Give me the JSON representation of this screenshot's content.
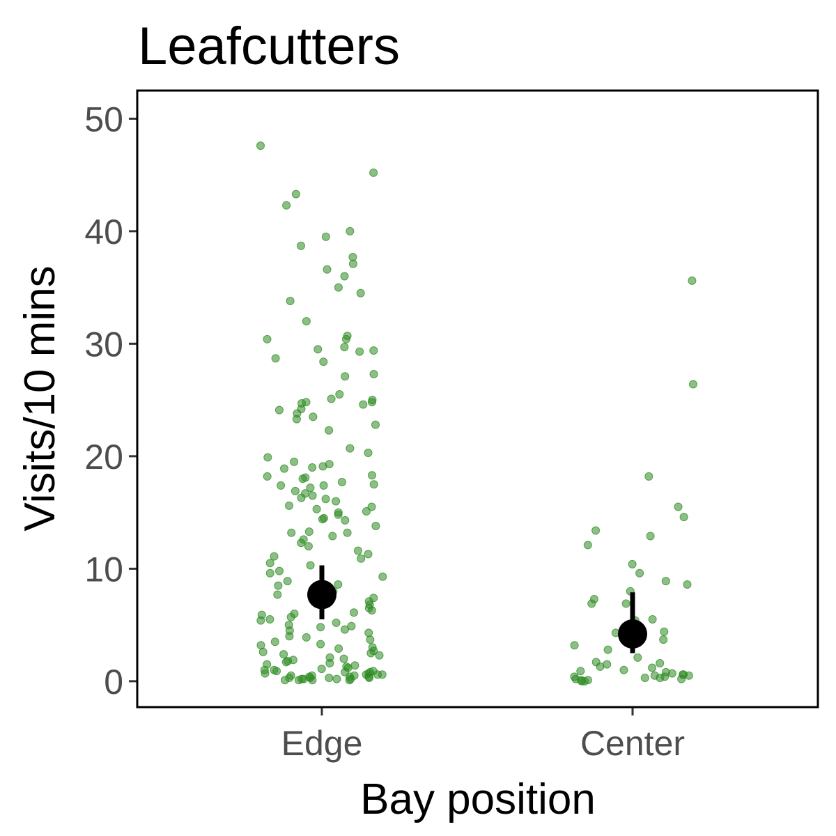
{
  "chart_data": {
    "type": "scatter",
    "title": "Leafcutters",
    "xlabel": "Bay position",
    "ylabel": "Visits/10 mins",
    "categories": [
      "Edge",
      "Center"
    ],
    "ylim": [
      -2.3,
      52.5
    ],
    "yticks": [
      0,
      10,
      20,
      30,
      40,
      50
    ],
    "grid": false,
    "legend": "none",
    "colors": {
      "points": "#2e8b22",
      "summary": "#000000"
    },
    "summary": [
      {
        "category": "Edge",
        "mean": 7.7,
        "lower": 5.5,
        "upper": 10.3
      },
      {
        "category": "Center",
        "mean": 4.2,
        "lower": 2.5,
        "upper": 7.9
      }
    ],
    "series": [
      {
        "category": "Edge",
        "values": [
          47.6,
          45.2,
          43.3,
          42.3,
          40.0,
          39.5,
          38.7,
          37.7,
          37.1,
          36.6,
          36.0,
          35.0,
          34.5,
          33.8,
          32.0,
          30.7,
          30.4,
          30.4,
          29.7,
          29.5,
          29.4,
          29.3,
          28.7,
          28.4,
          27.3,
          27.1,
          25.5,
          25.1,
          25.0,
          24.8,
          24.8,
          24.7,
          24.6,
          24.2,
          24.1,
          23.8,
          23.5,
          23.3,
          22.8,
          22.3,
          20.7,
          20.3,
          19.9,
          19.5,
          19.3,
          19.1,
          19.0,
          18.9,
          18.3,
          18.2,
          18.1,
          18.0,
          17.7,
          17.5,
          17.4,
          17.4,
          17.2,
          16.9,
          16.7,
          16.5,
          16.3,
          16.2,
          16.0,
          15.6,
          15.5,
          15.3,
          15.1,
          15.0,
          14.8,
          14.5,
          14.4,
          14.3,
          13.8,
          13.3,
          13.2,
          13.2,
          12.9,
          12.6,
          12.3,
          12.0,
          11.6,
          11.3,
          11.1,
          10.9,
          10.5,
          10.3,
          9.8,
          9.6,
          9.3,
          8.9,
          8.6,
          8.5,
          8.3,
          8.0,
          7.7,
          7.4,
          7.1,
          6.8,
          6.5,
          6.3,
          6.1,
          6.0,
          5.9,
          5.7,
          5.5,
          5.4,
          5.2,
          5.0,
          4.9,
          4.8,
          4.6,
          4.5,
          4.3,
          4.0,
          3.9,
          3.7,
          3.5,
          3.3,
          3.2,
          3.0,
          2.9,
          2.7,
          2.6,
          2.5,
          2.4,
          2.3,
          2.1,
          2.0,
          1.9,
          1.8,
          1.7,
          1.6,
          1.5,
          1.4,
          1.3,
          1.2,
          1.1,
          1.0,
          1.0,
          0.9,
          0.9,
          0.8,
          0.8,
          0.7,
          0.7,
          0.6,
          0.6,
          0.6,
          0.5,
          0.5,
          0.5,
          0.4,
          0.4,
          0.4,
          0.3,
          0.3,
          0.3,
          0.3,
          0.2,
          0.2,
          0.2,
          0.2,
          0.1,
          0.1,
          0.1,
          0.1
        ]
      },
      {
        "category": "Center",
        "values": [
          35.6,
          26.4,
          18.2,
          15.5,
          14.6,
          13.4,
          12.9,
          12.1,
          10.4,
          9.6,
          8.9,
          8.6,
          8.0,
          7.3,
          6.9,
          6.9,
          5.5,
          5.4,
          4.7,
          4.7,
          4.4,
          4.3,
          3.7,
          3.2,
          2.8,
          2.1,
          1.7,
          1.6,
          1.5,
          1.3,
          1.2,
          1.0,
          0.9,
          0.8,
          0.7,
          0.6,
          0.6,
          0.5,
          0.5,
          0.4,
          0.4,
          0.3,
          0.3,
          0.2,
          0.2,
          0.1,
          0.1,
          0.0,
          0.0
        ]
      }
    ]
  }
}
